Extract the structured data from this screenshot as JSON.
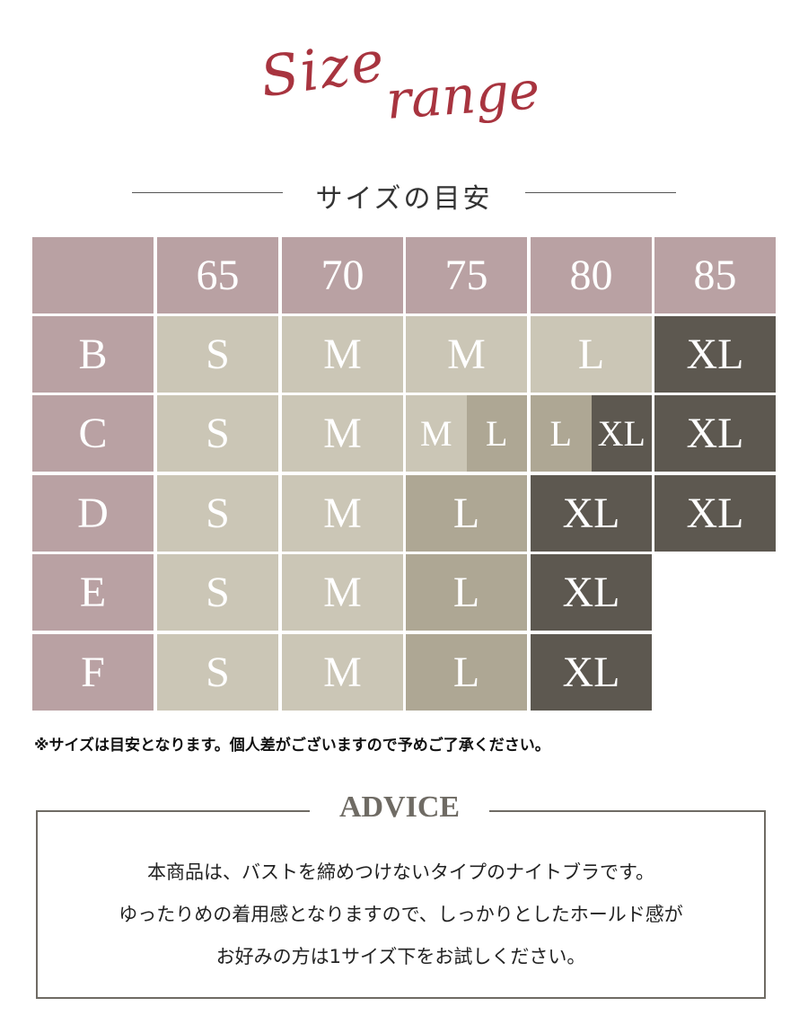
{
  "logo": {
    "word1": "Size",
    "word2": "range",
    "color": "#a8343f"
  },
  "subtitle": "サイズの目安",
  "colors": {
    "header": "#b9a1a3",
    "light": "#cbc6b6",
    "mid": "#aea794",
    "dark": "#5d5850"
  },
  "table": {
    "bands": [
      "65",
      "70",
      "75",
      "80",
      "85"
    ],
    "rows": [
      {
        "cup": "B",
        "cells": [
          [
            {
              "label": "S",
              "tone": "light"
            }
          ],
          [
            {
              "label": "M",
              "tone": "light"
            }
          ],
          [
            {
              "label": "M",
              "tone": "light"
            }
          ],
          [
            {
              "label": "L",
              "tone": "light"
            }
          ],
          [
            {
              "label": "XL",
              "tone": "dark"
            }
          ]
        ]
      },
      {
        "cup": "C",
        "cells": [
          [
            {
              "label": "S",
              "tone": "light"
            }
          ],
          [
            {
              "label": "M",
              "tone": "light"
            }
          ],
          [
            {
              "label": "M",
              "tone": "light"
            },
            {
              "label": "L",
              "tone": "mid"
            }
          ],
          [
            {
              "label": "L",
              "tone": "mid"
            },
            {
              "label": "XL",
              "tone": "dark"
            }
          ],
          [
            {
              "label": "XL",
              "tone": "dark"
            }
          ]
        ]
      },
      {
        "cup": "D",
        "cells": [
          [
            {
              "label": "S",
              "tone": "light"
            }
          ],
          [
            {
              "label": "M",
              "tone": "light"
            }
          ],
          [
            {
              "label": "L",
              "tone": "mid"
            }
          ],
          [
            {
              "label": "XL",
              "tone": "dark"
            }
          ],
          [
            {
              "label": "XL",
              "tone": "dark"
            }
          ]
        ]
      },
      {
        "cup": "E",
        "cells": [
          [
            {
              "label": "S",
              "tone": "light"
            }
          ],
          [
            {
              "label": "M",
              "tone": "light"
            }
          ],
          [
            {
              "label": "L",
              "tone": "mid"
            }
          ],
          [
            {
              "label": "XL",
              "tone": "dark"
            }
          ],
          []
        ]
      },
      {
        "cup": "F",
        "cells": [
          [
            {
              "label": "S",
              "tone": "light"
            }
          ],
          [
            {
              "label": "M",
              "tone": "light"
            }
          ],
          [
            {
              "label": "L",
              "tone": "mid"
            }
          ],
          [
            {
              "label": "XL",
              "tone": "dark"
            }
          ],
          []
        ]
      }
    ]
  },
  "note": "※サイズは目安となります。個人差がございますので予めご了承ください。",
  "advice": {
    "title": "ADVICE",
    "lines": [
      "本商品は、バストを締めつけないタイプのナイトブラです。",
      "ゆったりめの着用感となりますので、しっかりとしたホールド感が",
      "お好みの方は1サイズ下をお試しください。"
    ]
  }
}
